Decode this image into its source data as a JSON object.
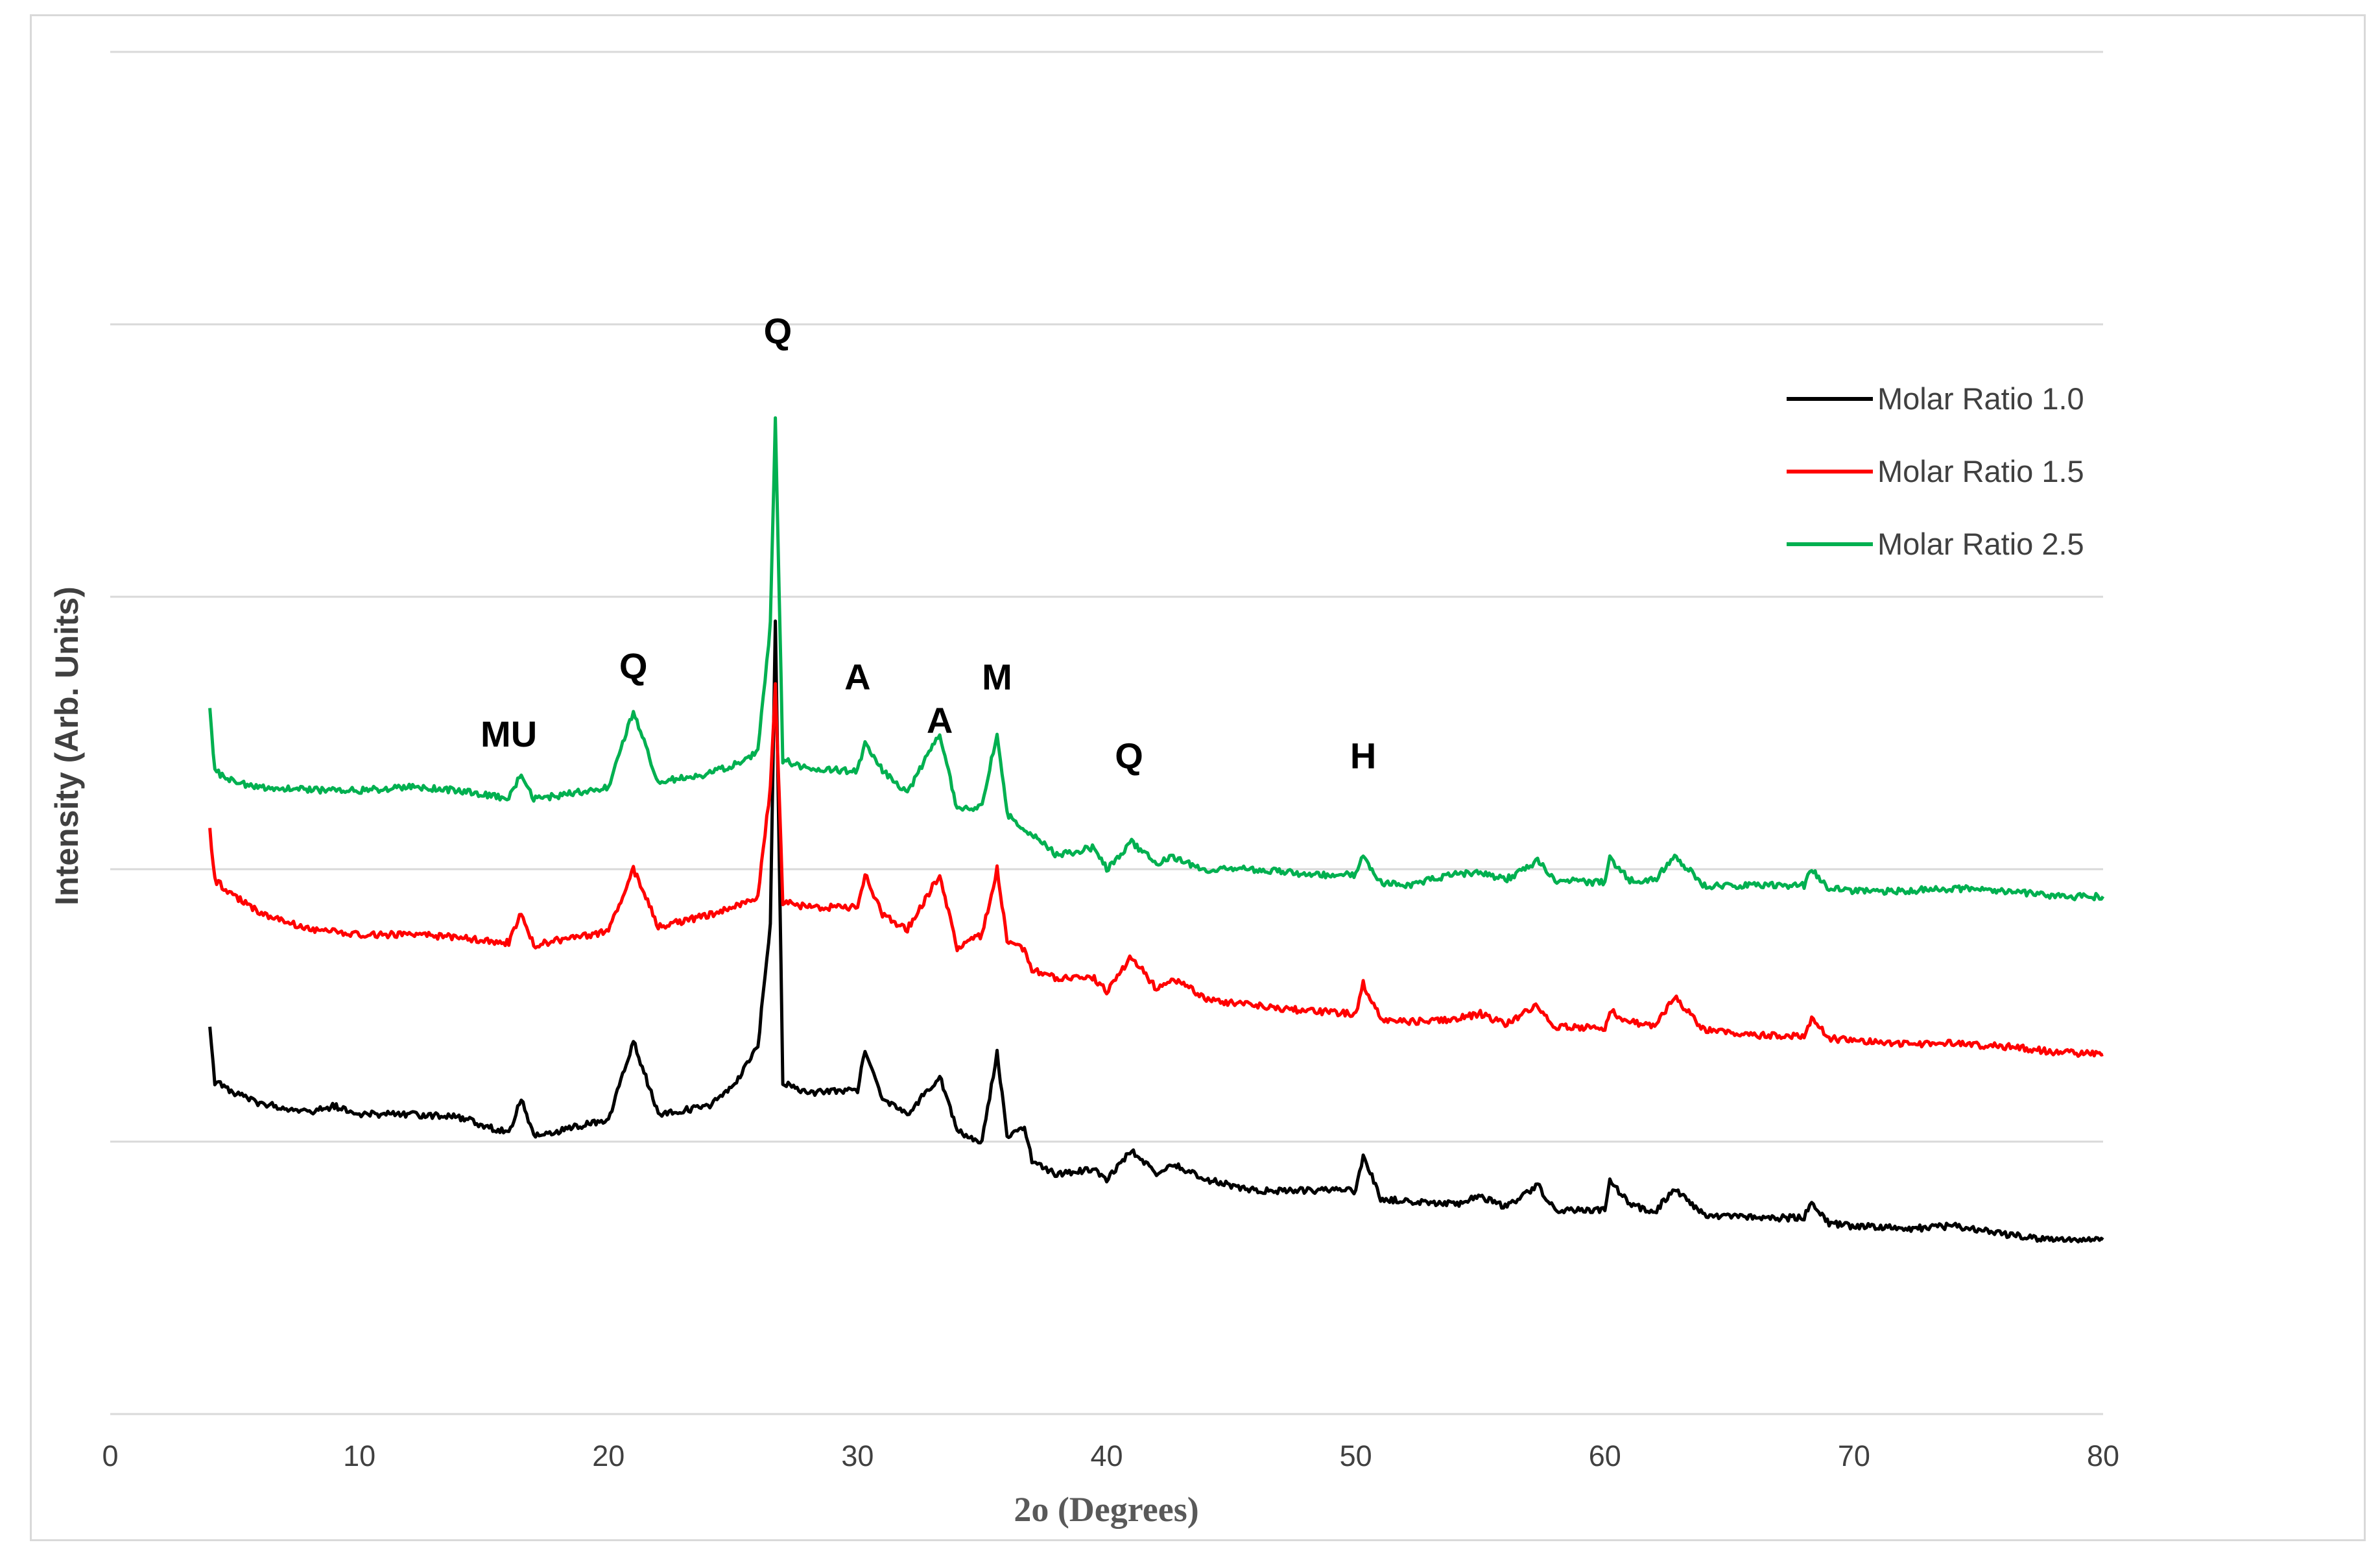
{
  "chart_data": {
    "type": "line",
    "title": "",
    "xlabel": "2o (Degrees)",
    "ylabel": "Intensity (Arb. Units)",
    "xlim": [
      0,
      80
    ],
    "x_ticks": [
      0,
      10,
      20,
      30,
      40,
      50,
      60,
      70,
      80
    ],
    "ylim": [
      0,
      5
    ],
    "grid": true,
    "legend_position": "top-right",
    "colors": {
      "Molar Ratio 1.0": "#000000",
      "Molar Ratio 1.5": "#ff0000",
      "Molar Ratio 2.5": "#00b050"
    },
    "series": [
      {
        "name": "Molar Ratio 1.0",
        "color": "#000000",
        "x": [
          4,
          4.2,
          5,
          6,
          8,
          9,
          10,
          12,
          14,
          16,
          16.5,
          17,
          18,
          20,
          21,
          22,
          24,
          25,
          26,
          26.5,
          26.7,
          27,
          28,
          30,
          30.3,
          31,
          32,
          33.3,
          34,
          35,
          35.6,
          36,
          36.7,
          37,
          38,
          39.5,
          40,
          41,
          42,
          42.6,
          43.3,
          44,
          46,
          48,
          50,
          50.3,
          51,
          52,
          54,
          55,
          56,
          57.3,
          58,
          60,
          60.2,
          61,
          62,
          62.8,
          64,
          66,
          68,
          68.3,
          69,
          70,
          72,
          74,
          76,
          78,
          80
        ],
        "y": [
          1.41,
          1.22,
          1.18,
          1.14,
          1.11,
          1.13,
          1.1,
          1.1,
          1.09,
          1.03,
          1.16,
          1.02,
          1.04,
          1.08,
          1.37,
          1.1,
          1.13,
          1.2,
          1.35,
          1.8,
          2.92,
          1.22,
          1.18,
          1.19,
          1.33,
          1.16,
          1.1,
          1.24,
          1.04,
          1.0,
          1.33,
          1.02,
          1.05,
          0.93,
          0.88,
          0.9,
          0.86,
          0.97,
          0.88,
          0.92,
          0.89,
          0.86,
          0.82,
          0.82,
          0.82,
          0.95,
          0.79,
          0.78,
          0.77,
          0.8,
          0.76,
          0.84,
          0.75,
          0.75,
          0.86,
          0.77,
          0.74,
          0.83,
          0.73,
          0.72,
          0.72,
          0.78,
          0.7,
          0.69,
          0.68,
          0.69,
          0.66,
          0.64,
          0.64
        ]
      },
      {
        "name": "Molar Ratio 1.5",
        "color": "#ff0000",
        "x": [
          4,
          4.2,
          5,
          6,
          8,
          10,
          12,
          14,
          16,
          16.5,
          17,
          18,
          20,
          21,
          22,
          24,
          25,
          26,
          26.5,
          26.7,
          27,
          28,
          30,
          30.3,
          31,
          32,
          33.3,
          34,
          35,
          35.6,
          36,
          36.7,
          37,
          38,
          39.5,
          40,
          41,
          42,
          42.6,
          43.3,
          44,
          46,
          48,
          50,
          50.3,
          51,
          52,
          54,
          55,
          56,
          57.3,
          58,
          60,
          60.2,
          61,
          62,
          62.8,
          64,
          66,
          68,
          68.3,
          69,
          70,
          72,
          74,
          76,
          78,
          80
        ],
        "y": [
          2.14,
          1.96,
          1.9,
          1.84,
          1.78,
          1.76,
          1.76,
          1.75,
          1.73,
          1.84,
          1.72,
          1.74,
          1.77,
          2.0,
          1.79,
          1.83,
          1.86,
          1.9,
          2.3,
          2.67,
          1.88,
          1.86,
          1.86,
          1.98,
          1.83,
          1.78,
          1.98,
          1.71,
          1.76,
          2.0,
          1.74,
          1.7,
          1.63,
          1.6,
          1.6,
          1.55,
          1.68,
          1.56,
          1.6,
          1.57,
          1.52,
          1.5,
          1.48,
          1.47,
          1.58,
          1.45,
          1.44,
          1.45,
          1.47,
          1.43,
          1.5,
          1.42,
          1.42,
          1.48,
          1.44,
          1.42,
          1.53,
          1.41,
          1.39,
          1.39,
          1.45,
          1.38,
          1.37,
          1.36,
          1.36,
          1.35,
          1.33,
          1.32
        ]
      },
      {
        "name": "Molar Ratio 2.5",
        "color": "#00b050",
        "x": [
          4,
          4.2,
          5,
          6,
          8,
          10,
          12,
          14,
          16,
          16.5,
          17,
          18,
          20,
          21,
          22,
          24,
          25,
          26,
          26.5,
          26.7,
          27,
          28,
          30,
          30.3,
          31,
          32,
          33.3,
          34,
          35,
          35.6,
          36,
          36.7,
          37,
          38,
          39.5,
          40,
          41,
          42,
          42.6,
          43.3,
          44,
          46,
          48,
          50,
          50.3,
          51,
          52,
          54,
          55,
          56,
          57.3,
          58,
          60,
          60.2,
          61,
          62,
          62.8,
          64,
          66,
          68,
          68.3,
          69,
          70,
          72,
          74,
          76,
          78,
          80
        ],
        "y": [
          2.58,
          2.36,
          2.32,
          2.3,
          2.29,
          2.29,
          2.3,
          2.29,
          2.26,
          2.35,
          2.26,
          2.27,
          2.3,
          2.58,
          2.32,
          2.35,
          2.38,
          2.43,
          2.9,
          3.65,
          2.4,
          2.37,
          2.36,
          2.47,
          2.36,
          2.28,
          2.5,
          2.22,
          2.23,
          2.5,
          2.2,
          2.15,
          2.13,
          2.05,
          2.08,
          2.0,
          2.1,
          2.02,
          2.05,
          2.02,
          2.0,
          2.0,
          1.98,
          1.98,
          2.05,
          1.95,
          1.94,
          1.98,
          1.99,
          1.96,
          2.03,
          1.96,
          1.95,
          2.04,
          1.96,
          1.96,
          2.05,
          1.94,
          1.94,
          1.94,
          2.0,
          1.93,
          1.92,
          1.92,
          1.93,
          1.92,
          1.9,
          1.9
        ]
      }
    ],
    "annotations": [
      {
        "text": "MU",
        "x": 16.0,
        "y": 2.45
      },
      {
        "text": "Q",
        "x": 21.0,
        "y": 2.7
      },
      {
        "text": "Q",
        "x": 26.8,
        "y": 3.93
      },
      {
        "text": "A",
        "x": 30.0,
        "y": 2.66
      },
      {
        "text": "A",
        "x": 33.3,
        "y": 2.5
      },
      {
        "text": "M",
        "x": 35.6,
        "y": 2.66
      },
      {
        "text": "Q",
        "x": 40.9,
        "y": 2.37
      },
      {
        "text": "H",
        "x": 50.3,
        "y": 2.37
      }
    ]
  }
}
